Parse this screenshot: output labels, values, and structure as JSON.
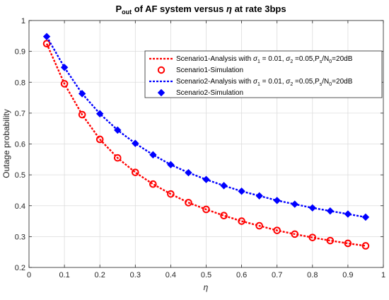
{
  "chart_data": {
    "type": "line",
    "title_parts": {
      "main": "P",
      "sub": "out",
      "rest": " of AF system versus ",
      "eta": "η",
      "tail": " at rate 3bps"
    },
    "xlabel": "η",
    "ylabel": "Outage probability",
    "xlim": [
      0,
      1
    ],
    "ylim": [
      0.2,
      1.0
    ],
    "xticks": [
      "0",
      "0.1",
      "0.2",
      "0.3",
      "0.4",
      "0.5",
      "0.6",
      "0.7",
      "0.8",
      "0.9",
      "1"
    ],
    "yticks": [
      "0.2",
      "0.3",
      "0.4",
      "0.5",
      "0.6",
      "0.7",
      "0.8",
      "0.9",
      "1"
    ],
    "grid": true,
    "legend_position": "top-right",
    "x": [
      0.05,
      0.1,
      0.15,
      0.2,
      0.25,
      0.3,
      0.35,
      0.4,
      0.45,
      0.5,
      0.55,
      0.6,
      0.65,
      0.7,
      0.75,
      0.8,
      0.85,
      0.9,
      0.95
    ],
    "series": [
      {
        "name": "Scenario1-Analysis with σ1 = 0.01, σ2 =0.05,Ps/N0=20dB",
        "style": "dashed-line",
        "color": "#ff0000",
        "values": [
          0.925,
          0.795,
          0.695,
          0.615,
          0.555,
          0.508,
          0.47,
          0.438,
          0.41,
          0.388,
          0.368,
          0.35,
          0.335,
          0.32,
          0.308,
          0.297,
          0.287,
          0.278,
          0.27
        ]
      },
      {
        "name": "Scenario1-Simulation",
        "style": "circle-markers",
        "color": "#ff0000",
        "values": [
          0.925,
          0.795,
          0.695,
          0.615,
          0.555,
          0.508,
          0.47,
          0.438,
          0.41,
          0.388,
          0.368,
          0.35,
          0.335,
          0.32,
          0.308,
          0.297,
          0.287,
          0.278,
          0.27
        ]
      },
      {
        "name": "Scenario2-Analysis with σ1 = 0.01, σ2 =0.05,Ps/N0=20dB",
        "style": "dashed-line",
        "color": "#0000ff",
        "values": [
          0.948,
          0.848,
          0.763,
          0.698,
          0.645,
          0.602,
          0.565,
          0.533,
          0.507,
          0.485,
          0.465,
          0.447,
          0.432,
          0.417,
          0.405,
          0.393,
          0.383,
          0.373,
          0.363
        ]
      },
      {
        "name": "Scenario2-Simulation",
        "style": "diamond-markers",
        "color": "#0000ff",
        "values": [
          0.948,
          0.848,
          0.763,
          0.698,
          0.645,
          0.602,
          0.565,
          0.533,
          0.507,
          0.485,
          0.465,
          0.447,
          0.432,
          0.417,
          0.405,
          0.393,
          0.383,
          0.373,
          0.363
        ]
      }
    ],
    "legend": {
      "s1_analysis": {
        "prefix": "Scenario1-Analysis with ",
        "sigma": "σ",
        "sub1": "1",
        "mid1": " = 0.01, ",
        "sub2": "2",
        "mid2": " =0.05,P",
        "subs": "s",
        "slash": "/N",
        "sub0": "0",
        "tail": "=20dB"
      },
      "s1_simulation": "Scenario1-Simulation",
      "s2_analysis": {
        "prefix": "Scenario2-Analysis with ",
        "sigma": "σ",
        "sub1": "1",
        "mid1": " = 0.01, ",
        "sub2": "2",
        "mid2": " =0.05,P",
        "subs": "s",
        "slash": "/N",
        "sub0": "0",
        "tail": "=20dB"
      },
      "s2_simulation": "Scenario2-Simulation"
    }
  }
}
